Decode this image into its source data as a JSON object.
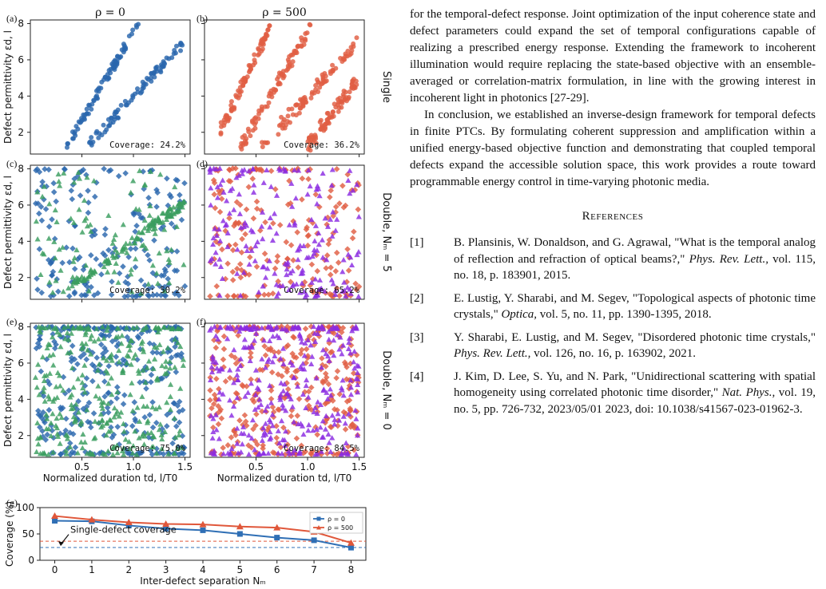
{
  "colors": {
    "blue": "#2a66ad",
    "green": "#3a9e5f",
    "orange": "#e05e43",
    "purple": "#8a2be2",
    "line_blue": "#2f6fb5",
    "line_orange": "#e0573a"
  },
  "figure": {
    "col_titles": [
      "ρ = 0",
      "ρ = 500"
    ],
    "row_labels": [
      "Single",
      "Double, Nₘ = 5",
      "Double, Nₘ = 0"
    ],
    "panel_labels": [
      "(a)",
      "(b)",
      "(c)",
      "(d)",
      "(e)",
      "(f)",
      "(g)"
    ],
    "ylabel": "Defect permittivity εd, l",
    "xlabel": "Normalized duration td, l/T0",
    "coverage_labels": [
      "Coverage: 24.2%",
      "Coverage: 36.2%",
      "Coverage: 50.2%",
      "Coverage: 65.2%",
      "Coverage: 75.0%",
      "Coverage: 84.5%"
    ]
  },
  "chart_data": [
    {
      "panel": "a",
      "type": "scatter",
      "xlim": [
        0.0,
        1.55
      ],
      "ylim": [
        0.8,
        8.2
      ],
      "xticks": [
        "0.5",
        "1.0",
        "1.5"
      ],
      "yticks": [
        "2",
        "4",
        "6",
        "8"
      ],
      "coverage": "24.2%",
      "series": [
        {
          "marker": "circle",
          "color": "blue",
          "bands": [
            [
              0.35,
              1.2,
              1.05,
              8.0
            ],
            [
              0.55,
              1.2,
              1.48,
              6.9
            ]
          ]
        }
      ]
    },
    {
      "panel": "b",
      "type": "scatter",
      "xlim": [
        0.0,
        1.55
      ],
      "ylim": [
        0.8,
        8.2
      ],
      "coverage": "36.2%",
      "series": [
        {
          "marker": "circle",
          "color": "orange",
          "bands": [
            [
              0.15,
              2.0,
              0.65,
              8.0
            ],
            [
              0.35,
              1.2,
              1.05,
              8.0
            ],
            [
              0.55,
              1.2,
              1.48,
              6.9
            ],
            [
              1.0,
              1.2,
              1.48,
              4.9
            ]
          ]
        }
      ]
    },
    {
      "panel": "c",
      "type": "scatter",
      "coverage": "50.2%",
      "series": [
        {
          "marker": "diamond",
          "color": "blue"
        },
        {
          "marker": "triangle",
          "color": "green"
        }
      ]
    },
    {
      "panel": "d",
      "type": "scatter",
      "coverage": "65.2%",
      "series": [
        {
          "marker": "diamond",
          "color": "orange"
        },
        {
          "marker": "triangle",
          "color": "purple"
        }
      ]
    },
    {
      "panel": "e",
      "type": "scatter",
      "coverage": "75.0%",
      "series": [
        {
          "marker": "diamond",
          "color": "blue"
        },
        {
          "marker": "triangle",
          "color": "green"
        }
      ]
    },
    {
      "panel": "f",
      "type": "scatter",
      "coverage": "84.5%",
      "series": [
        {
          "marker": "diamond",
          "color": "orange"
        },
        {
          "marker": "triangle",
          "color": "purple"
        }
      ]
    },
    {
      "panel": "g",
      "type": "line",
      "xlabel": "Inter-defect separation Nₘ",
      "ylabel": "Coverage (%)",
      "xlim": [
        -0.4,
        8.4
      ],
      "ylim": [
        0,
        100
      ],
      "x": [
        0,
        1,
        2,
        3,
        4,
        5,
        6,
        7,
        8
      ],
      "yticks": [
        0,
        50,
        100
      ],
      "series": [
        {
          "name": "ρ = 0",
          "color": "line_blue",
          "marker": "square",
          "values": [
            75,
            74,
            66,
            60,
            57,
            50,
            43,
            38,
            24
          ]
        },
        {
          "name": "ρ = 500",
          "color": "line_orange",
          "marker": "triangle",
          "values": [
            84,
            77,
            72,
            69,
            68,
            64,
            62,
            54,
            33
          ]
        }
      ],
      "hlines": [
        {
          "value": 24.2,
          "color": "line_blue"
        },
        {
          "value": 36.2,
          "color": "line_orange"
        }
      ],
      "annotation": "Single-defect coverage",
      "legend": "top-right"
    }
  ],
  "text": {
    "p1": "for the temporal-defect response. Joint optimization of the input coherence state and defect parameters could expand the set of temporal configurations capable of realizing a prescribed energy response. Extending the framework to incoherent illumination would require replacing the state-based objective with an ensemble-averaged or correlation-matrix formulation, in line with the growing interest in incoherent light in photonics [27-29].",
    "p2": "In conclusion, we established an inverse-design framework for temporal defects in finite PTCs. By formulating coherent suppression and amplification within a unified energy-based objective function and demonstrating that coupled temporal defects expand the accessible solution space, this work provides a route toward programmable energy control in time-varying photonic media.",
    "refs_title": "References",
    "refs": [
      {
        "num": "[1]",
        "pre": "B. Plansinis, W. Donaldson, and G. Agrawal, \"What is the temporal analog of reflection and refraction of optical beams?,\" ",
        "journal": "Phys. Rev. Lett.,",
        "post": " vol. 115, no. 18, p. 183901, 2015."
      },
      {
        "num": "[2]",
        "pre": "E. Lustig, Y. Sharabi, and M. Segev, \"Topological aspects of photonic time crystals,\" ",
        "journal": "Optica,",
        "post": " vol. 5, no. 11, pp. 1390-1395, 2018."
      },
      {
        "num": "[3]",
        "pre": "Y. Sharabi, E. Lustig, and M. Segev, \"Disordered photonic time crystals,\" ",
        "journal": "Phys. Rev. Lett.,",
        "post": " vol. 126, no. 16, p. 163902, 2021."
      },
      {
        "num": "[4]",
        "pre": "J. Kim, D. Lee, S. Yu, and N. Park, \"Unidirectional scattering with spatial homogeneity using correlated photonic time disorder,\" ",
        "journal": "Nat. Phys.,",
        "post": " vol. 19, no. 5, pp. 726-732, 2023/05/01 2023, doi: 10.1038/s41567-023-01962-3."
      }
    ]
  }
}
